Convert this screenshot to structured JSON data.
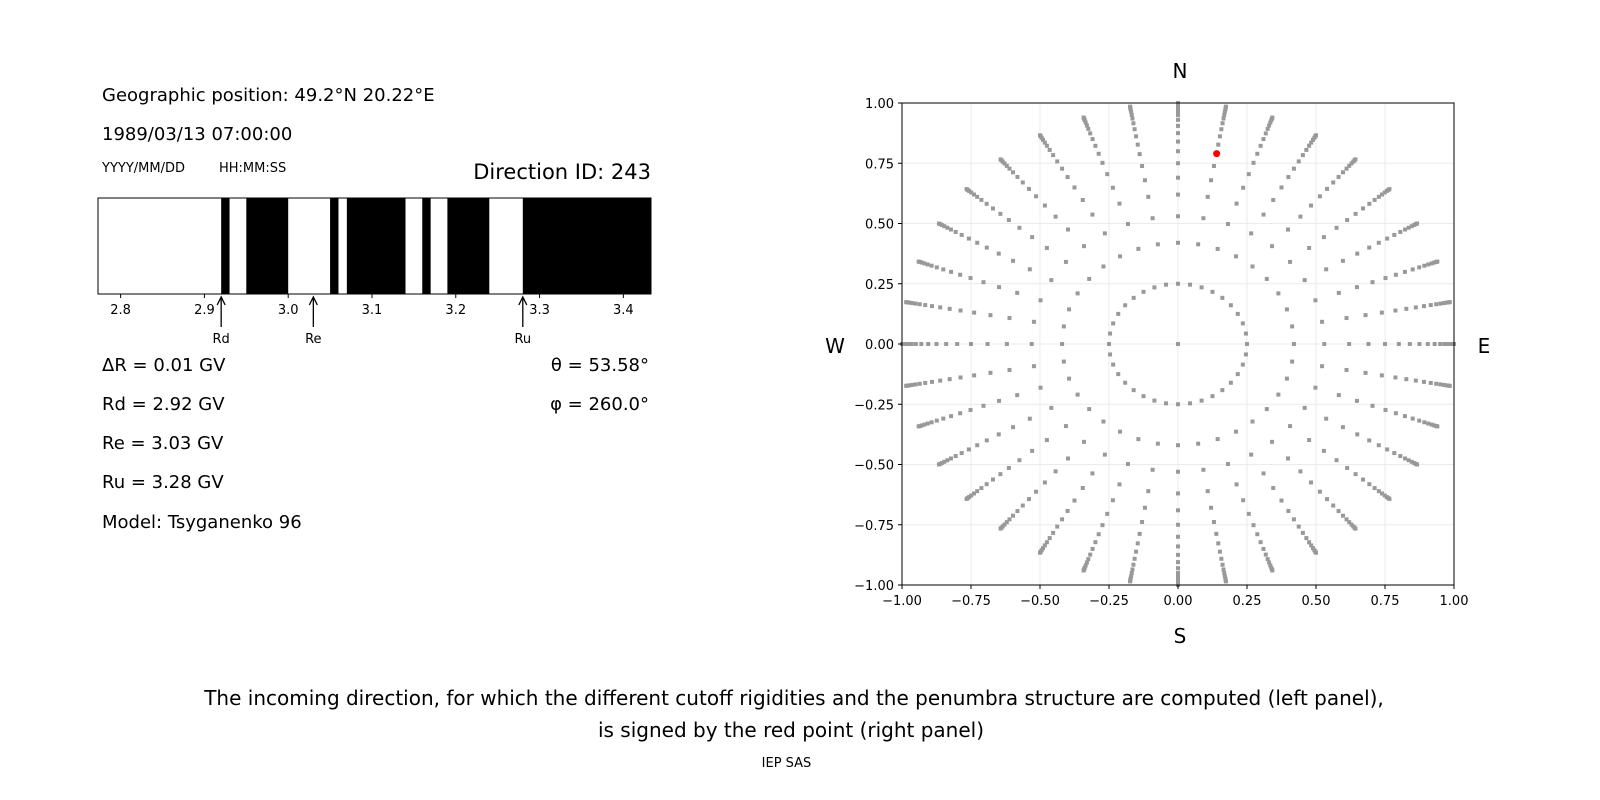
{
  "left_panel": {
    "geo_position": "Geographic position: 49.2°N 20.22°E",
    "datetime": "1989/03/13 07:00:00",
    "date_format": "YYYY/MM/DD",
    "time_format": "HH:MM:SS",
    "direction_id": "Direction ID: 243",
    "delta_r": "ΔR = 0.01 GV",
    "rd": "Rd = 2.92 GV",
    "re": "Re = 3.03 GV",
    "ru": "Ru = 3.28 GV",
    "model": "Model: Tsyganenko 96",
    "theta": "θ = 53.58°",
    "phi": "φ = 260.0°"
  },
  "caption": {
    "line1": "The incoming direction, for which the different cutoff rigidities and the penumbra structure are computed (left panel),",
    "line2": "is signed by the red point (right panel)",
    "credit": "IEP SAS"
  },
  "chart_data": [
    {
      "type": "penumbra-bar",
      "xlim": [
        2.773,
        3.433
      ],
      "xticks": [
        "2.8",
        "2.9",
        "3.0",
        "3.1",
        "3.2",
        "3.3",
        "3.4"
      ],
      "allowed_color": "#ffffff",
      "forbidden_color": "#000000",
      "allowed_ranges": [
        [
          2.773,
          2.92
        ],
        [
          2.93,
          2.95
        ],
        [
          3.0,
          3.05
        ],
        [
          3.06,
          3.07
        ],
        [
          3.14,
          3.16
        ],
        [
          3.17,
          3.19
        ],
        [
          3.24,
          3.28
        ]
      ],
      "markers": [
        {
          "label": "Rd",
          "value": 2.92
        },
        {
          "label": "Re",
          "value": 3.03
        },
        {
          "label": "Ru",
          "value": 3.28
        }
      ]
    },
    {
      "type": "scatter",
      "xlim": [
        -1,
        1
      ],
      "ylim": [
        -1,
        1
      ],
      "xticks": [
        "−1.00",
        "−0.75",
        "−0.50",
        "−0.25",
        "0.00",
        "0.25",
        "0.50",
        "0.75",
        "1.00"
      ],
      "yticks": [
        "−1.00",
        "−0.75",
        "−0.50",
        "−0.25",
        "0.00",
        "0.25",
        "0.50",
        "0.75",
        "1.00"
      ],
      "grid": true,
      "compass": {
        "top": "N",
        "bottom": "S",
        "left": "W",
        "right": "E"
      },
      "grid_points": {
        "color": "#999999",
        "azimuth_step_deg": 10,
        "radii": [
          0.25,
          0.42,
          0.53,
          0.62,
          0.69,
          0.75,
          0.8,
          0.84,
          0.875,
          0.905,
          0.93,
          0.95,
          0.965,
          0.978,
          0.988,
          0.995,
          1.0
        ],
        "center": [
          0,
          0
        ]
      },
      "selected_point": {
        "x": 0.14,
        "y": 0.79,
        "color": "#ff0000"
      }
    }
  ]
}
